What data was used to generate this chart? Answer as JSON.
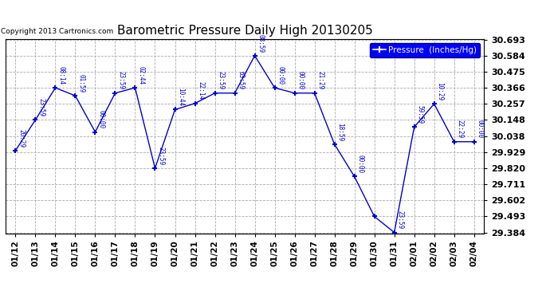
{
  "title": "Barometric Pressure Daily High 20130205",
  "copyright": "Copyright 2013 Cartronics.com",
  "legend_label": "Pressure  (Inches/Hg)",
  "dates": [
    "01/12",
    "01/13",
    "01/14",
    "01/15",
    "01/16",
    "01/17",
    "01/18",
    "01/19",
    "01/20",
    "01/21",
    "01/22",
    "01/23",
    "01/24",
    "01/25",
    "01/26",
    "01/27",
    "01/28",
    "01/29",
    "01/30",
    "01/31",
    "02/01",
    "02/02",
    "02/03",
    "02/04"
  ],
  "values": [
    29.94,
    30.148,
    30.366,
    30.312,
    30.066,
    30.33,
    30.366,
    29.82,
    30.218,
    30.26,
    30.33,
    30.33,
    30.584,
    30.366,
    30.33,
    30.33,
    29.983,
    29.764,
    29.493,
    29.384,
    30.1,
    30.257,
    30.0,
    30.0
  ],
  "time_labels": [
    "20:29",
    "23:59",
    "08:14",
    "01:59",
    "00:00",
    "23:59",
    "02:44",
    "23:59",
    "10:44",
    "22:14",
    "23:59",
    "63:59",
    "08:59",
    "00:00",
    "00:00",
    "21:29",
    "18:59",
    "00:00",
    "",
    "23:59",
    "59:59",
    "10:29",
    "22:29",
    "00:00"
  ],
  "ylim_min": 29.384,
  "ylim_max": 30.693,
  "yticks": [
    29.384,
    29.493,
    29.602,
    29.711,
    29.82,
    29.929,
    30.038,
    30.148,
    30.257,
    30.366,
    30.475,
    30.584,
    30.693
  ],
  "line_color": "#0000cc",
  "marker_color": "#0000cc",
  "grid_color": "#aaaaaa",
  "bg_color": "#ffffff",
  "legend_bg": "#0000ff",
  "legend_text_color": "#ffffff",
  "title_color": "#000000",
  "copyright_color": "#000000"
}
